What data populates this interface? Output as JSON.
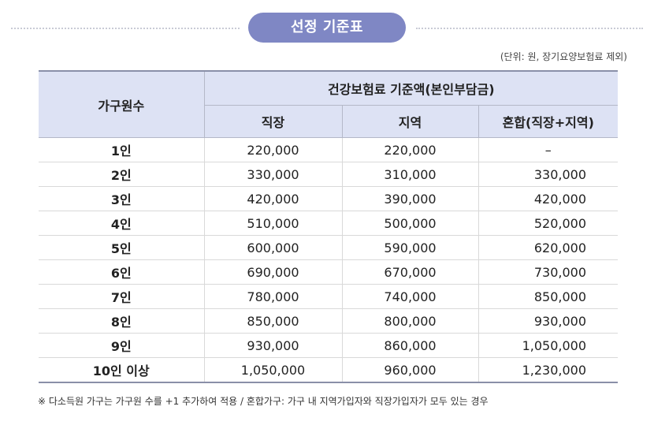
{
  "header": {
    "title": "선정 기준표"
  },
  "unit_note": "(단위: 원, 장기요양보험료 제외)",
  "table": {
    "row_header": "가구원수",
    "group_header": "건강보험료 기준액(본인부담금)",
    "columns": [
      "직장",
      "지역",
      "혼합(직장+지역)"
    ],
    "rows": [
      {
        "household": "1인",
        "workplace": "220,000",
        "regional": "220,000",
        "mixed": "–"
      },
      {
        "household": "2인",
        "workplace": "330,000",
        "regional": "310,000",
        "mixed": "330,000"
      },
      {
        "household": "3인",
        "workplace": "420,000",
        "regional": "390,000",
        "mixed": "420,000"
      },
      {
        "household": "4인",
        "workplace": "510,000",
        "regional": "500,000",
        "mixed": "520,000"
      },
      {
        "household": "5인",
        "workplace": "600,000",
        "regional": "590,000",
        "mixed": "620,000"
      },
      {
        "household": "6인",
        "workplace": "690,000",
        "regional": "670,000",
        "mixed": "730,000"
      },
      {
        "household": "7인",
        "workplace": "780,000",
        "regional": "740,000",
        "mixed": "850,000"
      },
      {
        "household": "8인",
        "workplace": "850,000",
        "regional": "800,000",
        "mixed": "930,000"
      },
      {
        "household": "9인",
        "workplace": "930,000",
        "regional": "860,000",
        "mixed": "1,050,000"
      },
      {
        "household": "10인 이상",
        "workplace": "1,050,000",
        "regional": "960,000",
        "mixed": "1,230,000"
      }
    ]
  },
  "footnote": "※ 다소득원 가구는 가구원 수를 +1 추가하여 적용 / 혼합가구: 가구 내 지역가입자와 직장가입자가 모두 있는 경우"
}
